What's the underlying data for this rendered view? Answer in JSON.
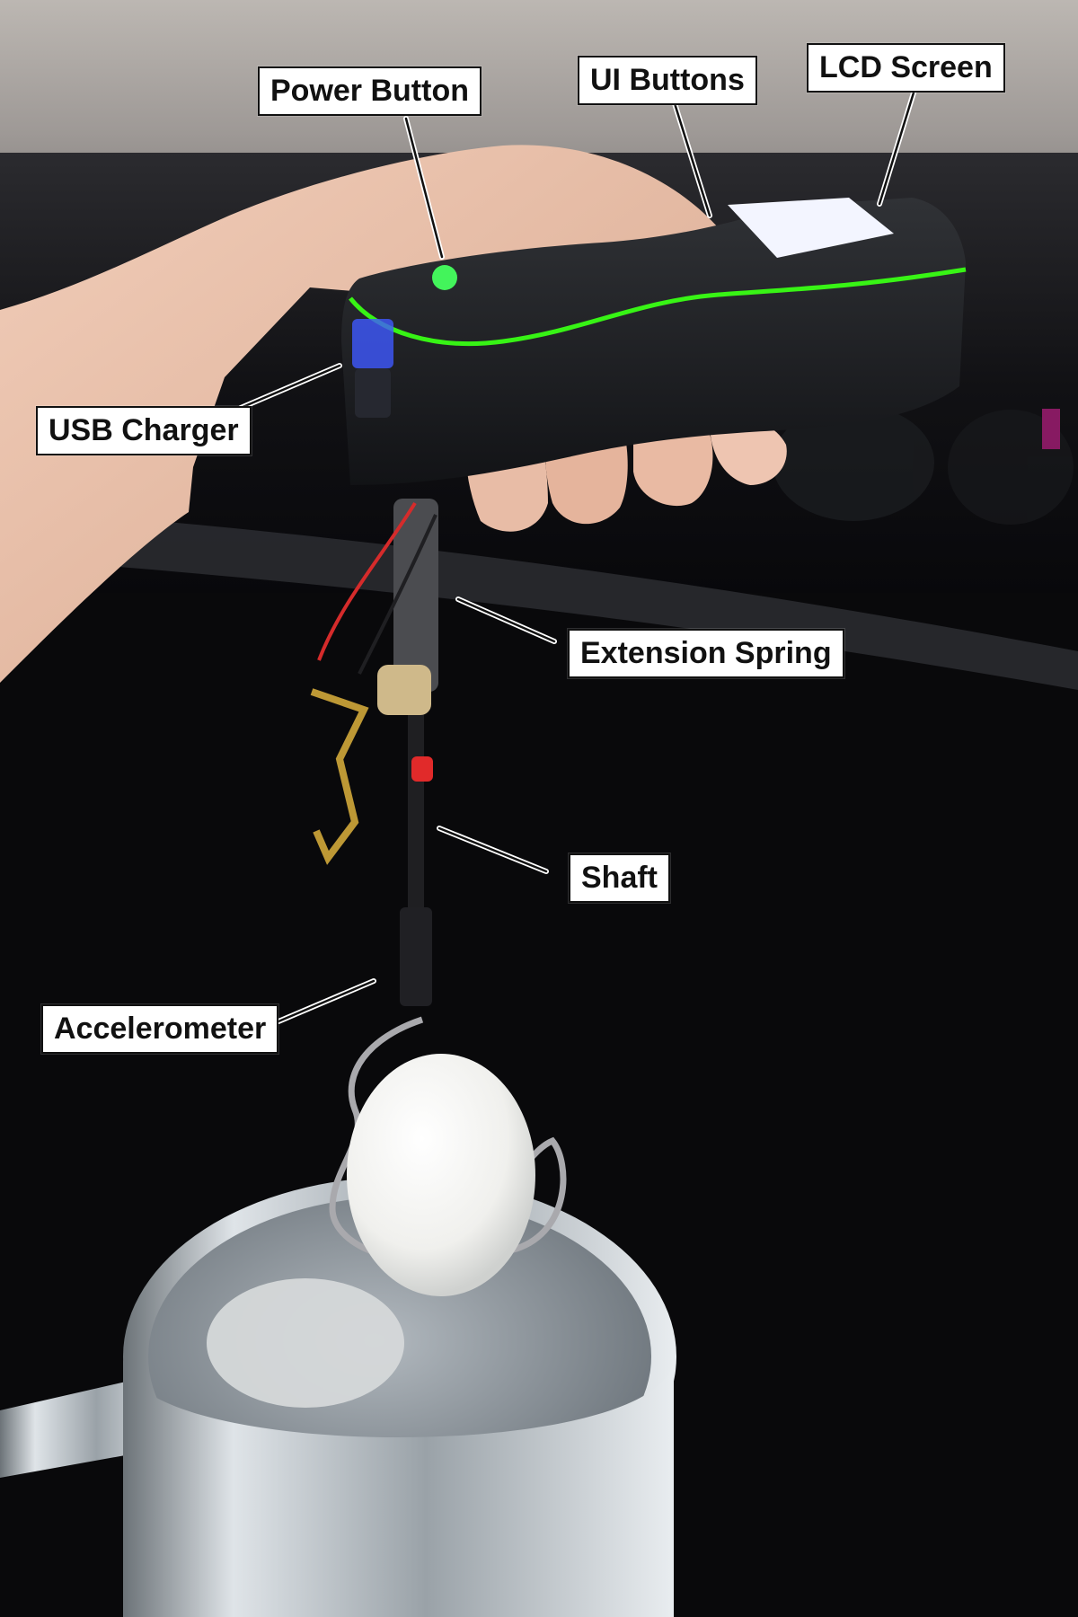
{
  "labels": {
    "power_button": "Power Button",
    "ui_buttons": "UI Buttons",
    "lcd_screen": "LCD Screen",
    "usb_charger": "USB Charger",
    "extension_spring": "Extension Spring",
    "shaft": "Shaft",
    "accelerometer": "Accelerometer"
  },
  "colors": {
    "device_body": "#1f2024",
    "accent_strip": "#39ff14",
    "power_button": "#43f45b",
    "usb_glow": "#3f59ff",
    "screen": "#f3f5ff",
    "pot": "#c7cdd1",
    "water": "#8e979f",
    "egg": "#f5f5f2",
    "background_dark": "#0b0b0d"
  }
}
